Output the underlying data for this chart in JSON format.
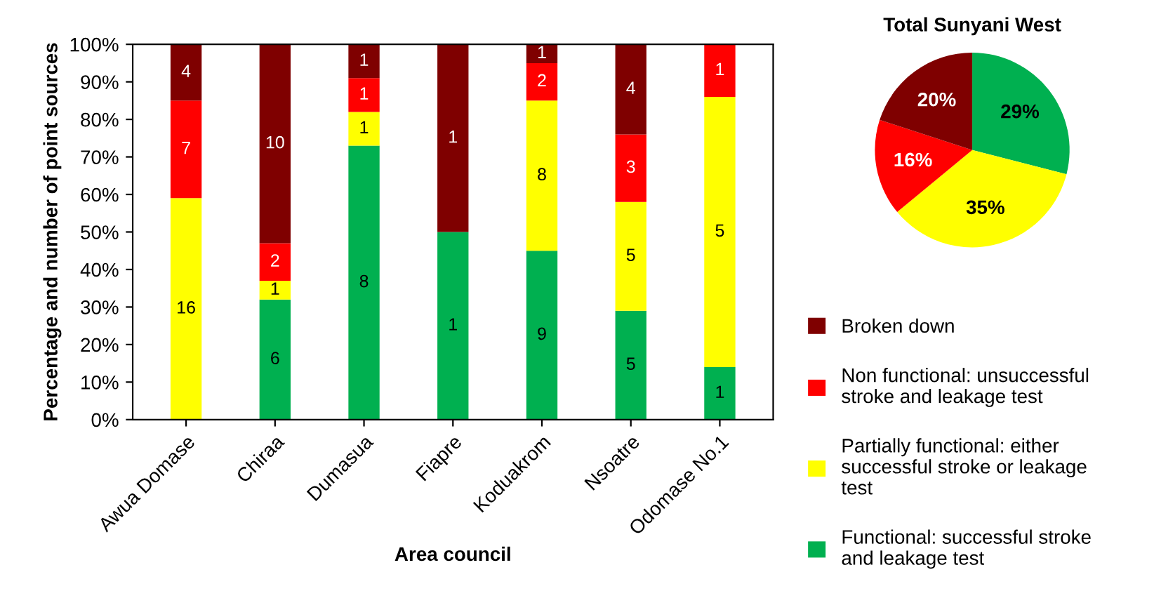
{
  "chart_data": [
    {
      "type": "bar",
      "stacked": true,
      "xlabel": "Area council",
      "ylabel": "Percentage and number of point sources",
      "categories": [
        "Awua Domase",
        "Chiraa",
        "Dumasua",
        "Fiapre",
        "Koduakrom",
        "Nsoatre",
        "Odomase No.1"
      ],
      "series": [
        {
          "name": "Functional: successful stroke and leakage test",
          "color": "#00b050",
          "values": [
            0,
            32,
            73,
            50,
            45,
            29,
            14
          ]
        },
        {
          "name": "Partially functional: either successful stroke or leakage test",
          "color": "#ffff00",
          "values": [
            59,
            5,
            9,
            0,
            40,
            29,
            72
          ]
        },
        {
          "name": "Non functional: unsuccessful stroke and leakage test",
          "color": "#ff0000",
          "values": [
            26,
            10,
            9,
            0,
            10,
            18,
            14
          ]
        },
        {
          "name": "Broken down",
          "color": "#7f0000",
          "values": [
            15,
            53,
            9,
            50,
            5,
            24,
            0
          ]
        }
      ],
      "annotations": [
        "16",
        "7",
        "4",
        "6",
        "1",
        "2",
        "10",
        "8",
        "1",
        "1",
        "1",
        "1",
        "1",
        "9",
        "8",
        "2",
        "1",
        "5",
        "5",
        "3",
        "4",
        "1",
        "5",
        "1"
      ],
      "ylim": [
        0,
        100
      ],
      "yticks": [
        {
          "value": 0,
          "label": "0%"
        },
        {
          "value": 10,
          "label": "10%"
        },
        {
          "value": 20,
          "label": "20%"
        },
        {
          "value": 30,
          "label": "30%"
        },
        {
          "value": 40,
          "label": "40%"
        },
        {
          "value": 50,
          "label": "50%"
        },
        {
          "value": 60,
          "label": "60%"
        },
        {
          "value": 70,
          "label": "70%"
        },
        {
          "value": 80,
          "label": "80%"
        },
        {
          "value": 90,
          "label": "90%"
        },
        {
          "value": 100,
          "label": "100%"
        }
      ],
      "legend": "right"
    },
    {
      "type": "pie",
      "title": "Total Sunyani West",
      "categories": [
        null,
        null,
        null,
        null
      ],
      "values": [
        29,
        35,
        16,
        20
      ],
      "colors": [
        "#00b050",
        "#ffff00",
        "#ff0000",
        "#7f0000"
      ],
      "value_labels": [
        "29%",
        "35%",
        "16%",
        "20%"
      ]
    }
  ]
}
